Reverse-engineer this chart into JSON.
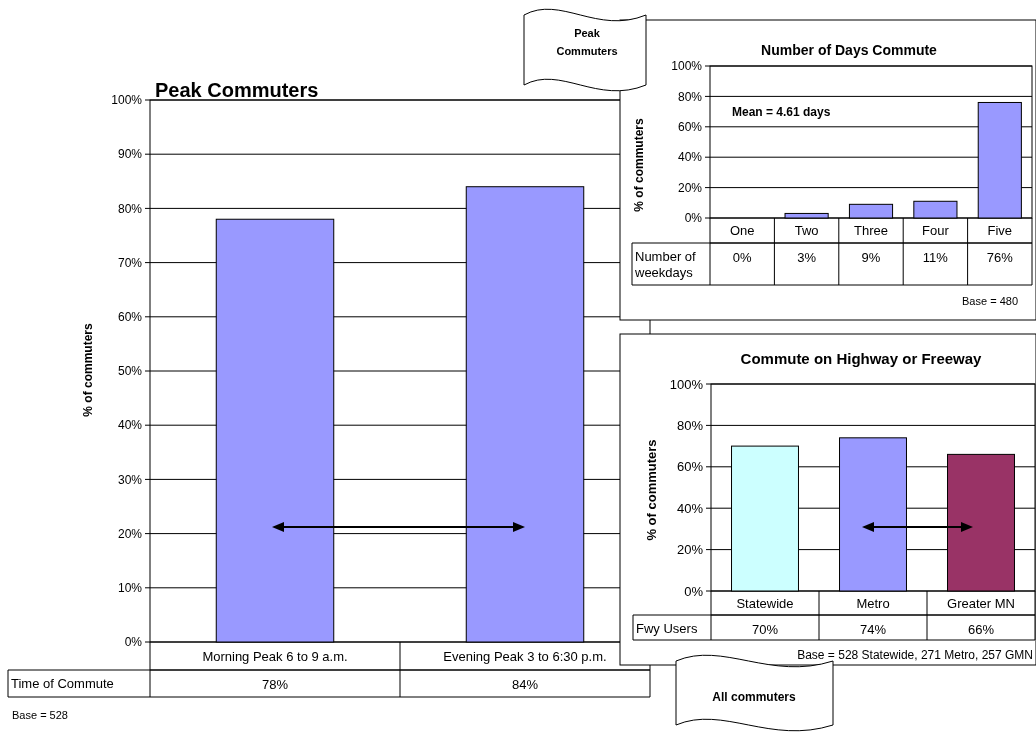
{
  "chart_data": [
    {
      "type": "bar",
      "title": "Peak Commuters",
      "ylabel": "% of commuters",
      "xlabel": "Time of Commute",
      "categories": [
        "Morning Peak  6 to 9 a.m.",
        "Evening Peak  3 to 6:30 p.m."
      ],
      "values": [
        78,
        84
      ],
      "value_labels": [
        "78%",
        "84%"
      ],
      "color": "#9999ff",
      "ylim": [
        0,
        100
      ],
      "yticks": [
        {
          "value": 0,
          "label": "0%"
        },
        {
          "value": 10,
          "label": "10%"
        },
        {
          "value": 20,
          "label": "20%"
        },
        {
          "value": 30,
          "label": "30%"
        },
        {
          "value": 40,
          "label": "40%"
        },
        {
          "value": 50,
          "label": "50%"
        },
        {
          "value": 60,
          "label": "60%"
        },
        {
          "value": 70,
          "label": "70%"
        },
        {
          "value": 80,
          "label": "80%"
        },
        {
          "value": 90,
          "label": "90%"
        },
        {
          "value": 100,
          "label": "100%"
        }
      ],
      "grid": "y",
      "annotations": [
        "Base = 528"
      ]
    },
    {
      "type": "bar",
      "title": "Number of Days Commute",
      "ylabel": "% of commuters",
      "xlabel": "Number of weekdays",
      "categories": [
        "One",
        "Two",
        "Three",
        "Four",
        "Five"
      ],
      "values": [
        0,
        3,
        9,
        11,
        76
      ],
      "value_labels": [
        "0%",
        "3%",
        "9%",
        "11%",
        "76%"
      ],
      "color": "#9999ff",
      "ylim": [
        0,
        100
      ],
      "yticks": [
        {
          "value": 0,
          "label": "0%"
        },
        {
          "value": 20,
          "label": "20%"
        },
        {
          "value": 40,
          "label": "40%"
        },
        {
          "value": 60,
          "label": "60%"
        },
        {
          "value": 80,
          "label": "80%"
        },
        {
          "value": 100,
          "label": "100%"
        }
      ],
      "grid": "y",
      "annotations": [
        "Peak Commuters",
        "Mean = 4.61 days",
        "Base = 480"
      ]
    },
    {
      "type": "bar",
      "title": "Commute on Highway or Freeway",
      "ylabel": "% of commuters",
      "xlabel": "Fwy Users",
      "categories": [
        "Statewide",
        "Metro",
        "Greater MN"
      ],
      "values": [
        70,
        74,
        66
      ],
      "value_labels": [
        "70%",
        "74%",
        "66%"
      ],
      "colors": [
        "#ccffff",
        "#9999ff",
        "#993366"
      ],
      "ylim": [
        0,
        100
      ],
      "yticks": [
        {
          "value": 0,
          "label": "0%"
        },
        {
          "value": 20,
          "label": "20%"
        },
        {
          "value": 40,
          "label": "40%"
        },
        {
          "value": 60,
          "label": "60%"
        },
        {
          "value": 80,
          "label": "80%"
        },
        {
          "value": 100,
          "label": "100%"
        }
      ],
      "grid": "y",
      "annotations": [
        "Base = 528 Statewide,  271 Metro, 257 GMN",
        "All commuters"
      ]
    }
  ]
}
